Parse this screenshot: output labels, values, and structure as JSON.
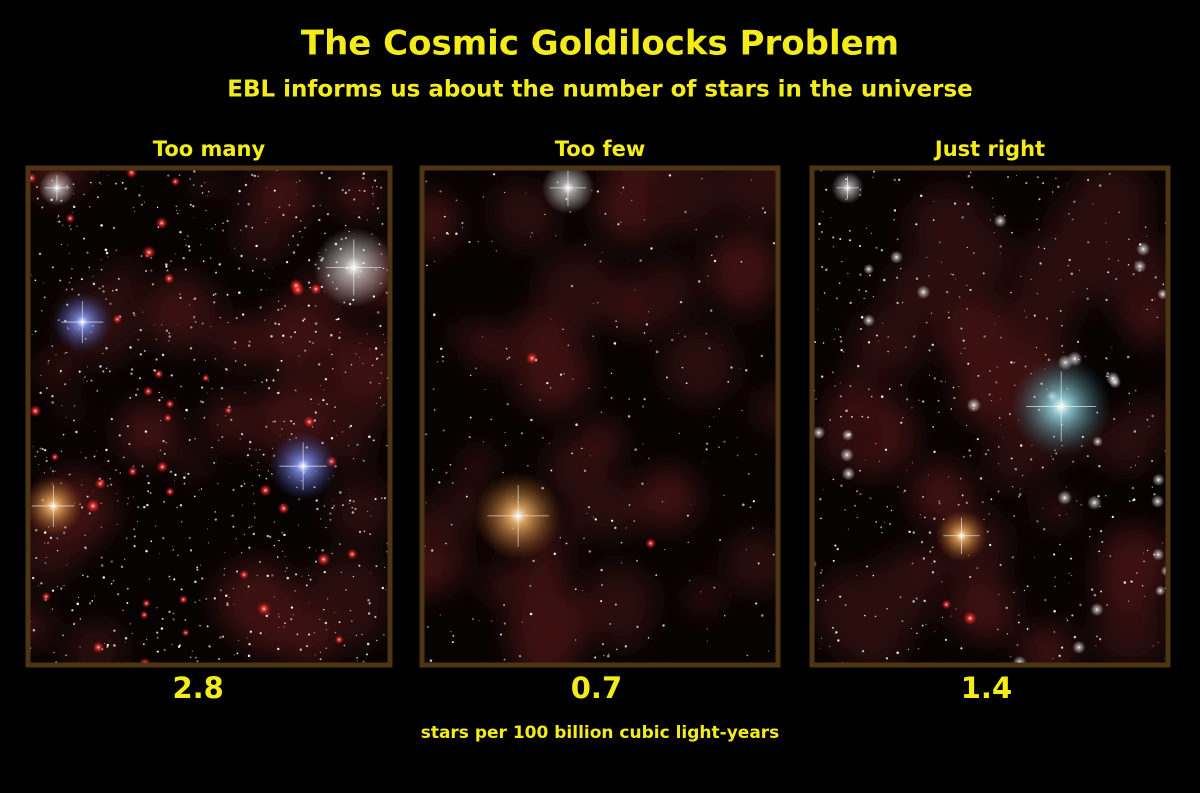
{
  "header": {
    "title": "The Cosmic Goldilocks Problem",
    "subtitle": "EBL informs us about the number of stars in the universe"
  },
  "panels": [
    {
      "label": "Too many",
      "value": 2.8
    },
    {
      "label": "Too few",
      "value": 0.7
    },
    {
      "label": "Just right",
      "value": 1.4
    }
  ],
  "footer": {
    "note": "stars per 100 billion cubic light-years"
  }
}
